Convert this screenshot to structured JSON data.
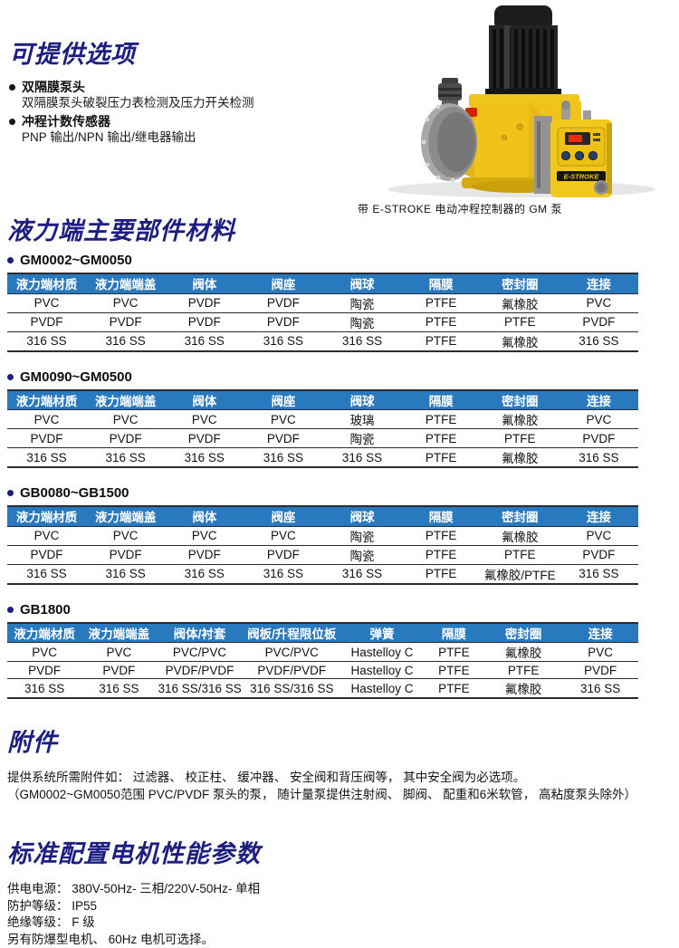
{
  "options_section": {
    "title": "可提供选项",
    "items": [
      {
        "label": "双隔膜泵头",
        "desc": "双隔膜泵头破裂压力表检测及压力开关检测"
      },
      {
        "label": "冲程计数传感器",
        "desc": "PNP 输出/NPN 输出/继电器输出"
      }
    ]
  },
  "pump_figure": {
    "caption": "带 E-STROKE 电动冲程控制器的 GM 泵",
    "brand_label": "E-STROKE"
  },
  "materials_section": {
    "title": "液力端主要部件材料",
    "tables": [
      {
        "model": "GM0002~GM0050",
        "headers": [
          "液力端材质",
          "液力端端盖",
          "阀体",
          "阀座",
          "阀球",
          "隔膜",
          "密封圈",
          "连接"
        ],
        "rows": [
          [
            "PVC",
            "PVC",
            "PVDF",
            "PVDF",
            "陶瓷",
            "PTFE",
            "氟橡胶",
            "PVC"
          ],
          [
            "PVDF",
            "PVDF",
            "PVDF",
            "PVDF",
            "陶瓷",
            "PTFE",
            "PTFE",
            "PVDF"
          ],
          [
            "316 SS",
            "316 SS",
            "316 SS",
            "316 SS",
            "316 SS",
            "PTFE",
            "氟橡胶",
            "316 SS"
          ]
        ]
      },
      {
        "model": "GM0090~GM0500",
        "headers": [
          "液力端材质",
          "液力端端盖",
          "阀体",
          "阀座",
          "阀球",
          "隔膜",
          "密封圈",
          "连接"
        ],
        "rows": [
          [
            "PVC",
            "PVC",
            "PVC",
            "PVC",
            "玻璃",
            "PTFE",
            "氟橡胶",
            "PVC"
          ],
          [
            "PVDF",
            "PVDF",
            "PVDF",
            "PVDF",
            "陶瓷",
            "PTFE",
            "PTFE",
            "PVDF"
          ],
          [
            "316 SS",
            "316 SS",
            "316 SS",
            "316 SS",
            "316 SS",
            "PTFE",
            "氟橡胶",
            "316 SS"
          ]
        ]
      },
      {
        "model": "GB0080~GB1500",
        "headers": [
          "液力端材质",
          "液力端端盖",
          "阀体",
          "阀座",
          "阀球",
          "隔膜",
          "密封圈",
          "连接"
        ],
        "rows": [
          [
            "PVC",
            "PVC",
            "PVC",
            "PVC",
            "陶瓷",
            "PTFE",
            "氟橡胶",
            "PVC"
          ],
          [
            "PVDF",
            "PVDF",
            "PVDF",
            "PVDF",
            "陶瓷",
            "PTFE",
            "PTFE",
            "PVDF"
          ],
          [
            "316 SS",
            "316 SS",
            "316 SS",
            "316 SS",
            "316 SS",
            "PTFE",
            "氟橡胶/PTFE",
            "316 SS"
          ]
        ]
      },
      {
        "model": "GB1800",
        "headers": [
          "液力端材质",
          "液力端端盖",
          "阀体/衬套",
          "阀板/升程限位板",
          "弹簧",
          "隔膜",
          "密封圈",
          "连接"
        ],
        "rows": [
          [
            "PVC",
            "PVC",
            "PVC/PVC",
            "PVC/PVC",
            "Hastelloy C",
            "PTFE",
            "氟橡胶",
            "PVC"
          ],
          [
            "PVDF",
            "PVDF",
            "PVDF/PVDF",
            "PVDF/PVDF",
            "Hastelloy C",
            "PTFE",
            "PTFE",
            "PVDF"
          ],
          [
            "316 SS",
            "316 SS",
            "316 SS/316 SS",
            "316 SS/316 SS",
            "Hastelloy C",
            "PTFE",
            "氟橡胶",
            "316 SS"
          ]
        ]
      }
    ]
  },
  "accessories_section": {
    "title": "附件",
    "lines": [
      "提供系统所需附件如： 过滤器、 校正柱、 缓冲器、 安全阀和背压阀等， 其中安全阀为必选项。",
      "（GM0002~GM0050范围 PVC/PVDF 泵头的泵， 随计量泵提供注射阀、 脚阀、 配重和6米软管， 高粘度泵头除外）"
    ]
  },
  "motor_section": {
    "title": "标准配置电机性能参数",
    "lines": [
      "供电电源：  380V-50Hz- 三相/220V-50Hz- 单相",
      "防护等级：  IP55",
      "绝缘等级：  F 级",
      "另有防爆型电机、 60Hz 电机可选择。"
    ]
  },
  "colors": {
    "accent_navy": "#1e1e82",
    "table_header_blue": "#2979be",
    "pump_yellow": "#efc319"
  }
}
